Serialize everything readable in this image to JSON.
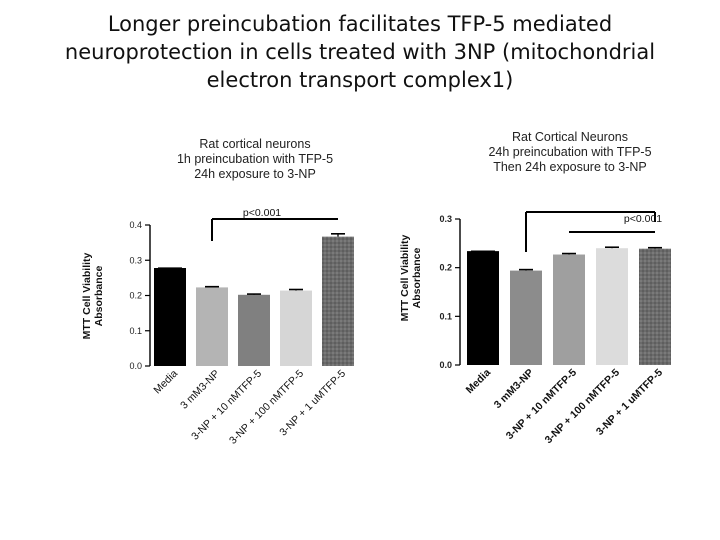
{
  "title_lines": [
    "Longer preincubation facilitates TFP-5 mediated",
    "neuroprotection in cells treated with 3NP  (mitochondrial",
    "electron transport complex1)"
  ],
  "chart_data": [
    {
      "type": "bar",
      "title_lines": [
        "Rat cortical neurons",
        "1h preincubation with TFP-5",
        "24h exposure to 3-NP"
      ],
      "ylabel_lines": [
        "MTT Cell Viability",
        "Absorbance"
      ],
      "ylim": [
        0,
        0.4
      ],
      "yticks": [
        "0.0",
        "0.1",
        "0.2",
        "0.3",
        "0.4"
      ],
      "categories": [
        "Media",
        "3 mM3-NP",
        "3-NP + 10 nMTFP-5",
        "3-NP + 100 nMTFP-5",
        "3-NP + 1 uMTFP-5"
      ],
      "values": [
        0.278,
        0.223,
        0.202,
        0.214,
        0.367
      ],
      "errors": [
        0,
        0.002,
        0.002,
        0.003,
        0.008
      ],
      "colors": [
        "#000000",
        "#b4b4b4",
        "#808080",
        "#d6d6d6",
        "#6b6b6b"
      ],
      "annotation": "p<0.001"
    },
    {
      "type": "bar",
      "title_lines": [
        "Rat Cortical Neurons",
        "24h preincubation with TFP-5",
        "Then 24h exposure to 3-NP"
      ],
      "ylabel_lines": [
        "MTT Cell Viability",
        "Absorbance"
      ],
      "ylim": [
        0,
        0.3
      ],
      "yticks": [
        "0.0",
        "0.1",
        "0.2",
        "0.3"
      ],
      "categories": [
        "Media",
        "3 mM3-NP",
        "3-NP + 10 nMTFP-5",
        "3-NP + 100 nMTFP-5",
        "3-NP + 1 uMTFP-5"
      ],
      "values": [
        0.234,
        0.194,
        0.227,
        0.24,
        0.239
      ],
      "errors": [
        0,
        0.002,
        0.002,
        0.002,
        0.002
      ],
      "colors": [
        "#000000",
        "#8c8c8c",
        "#9f9f9f",
        "#dcdcdc",
        "#6b6b6b"
      ],
      "annotation": "p<0.001"
    }
  ]
}
